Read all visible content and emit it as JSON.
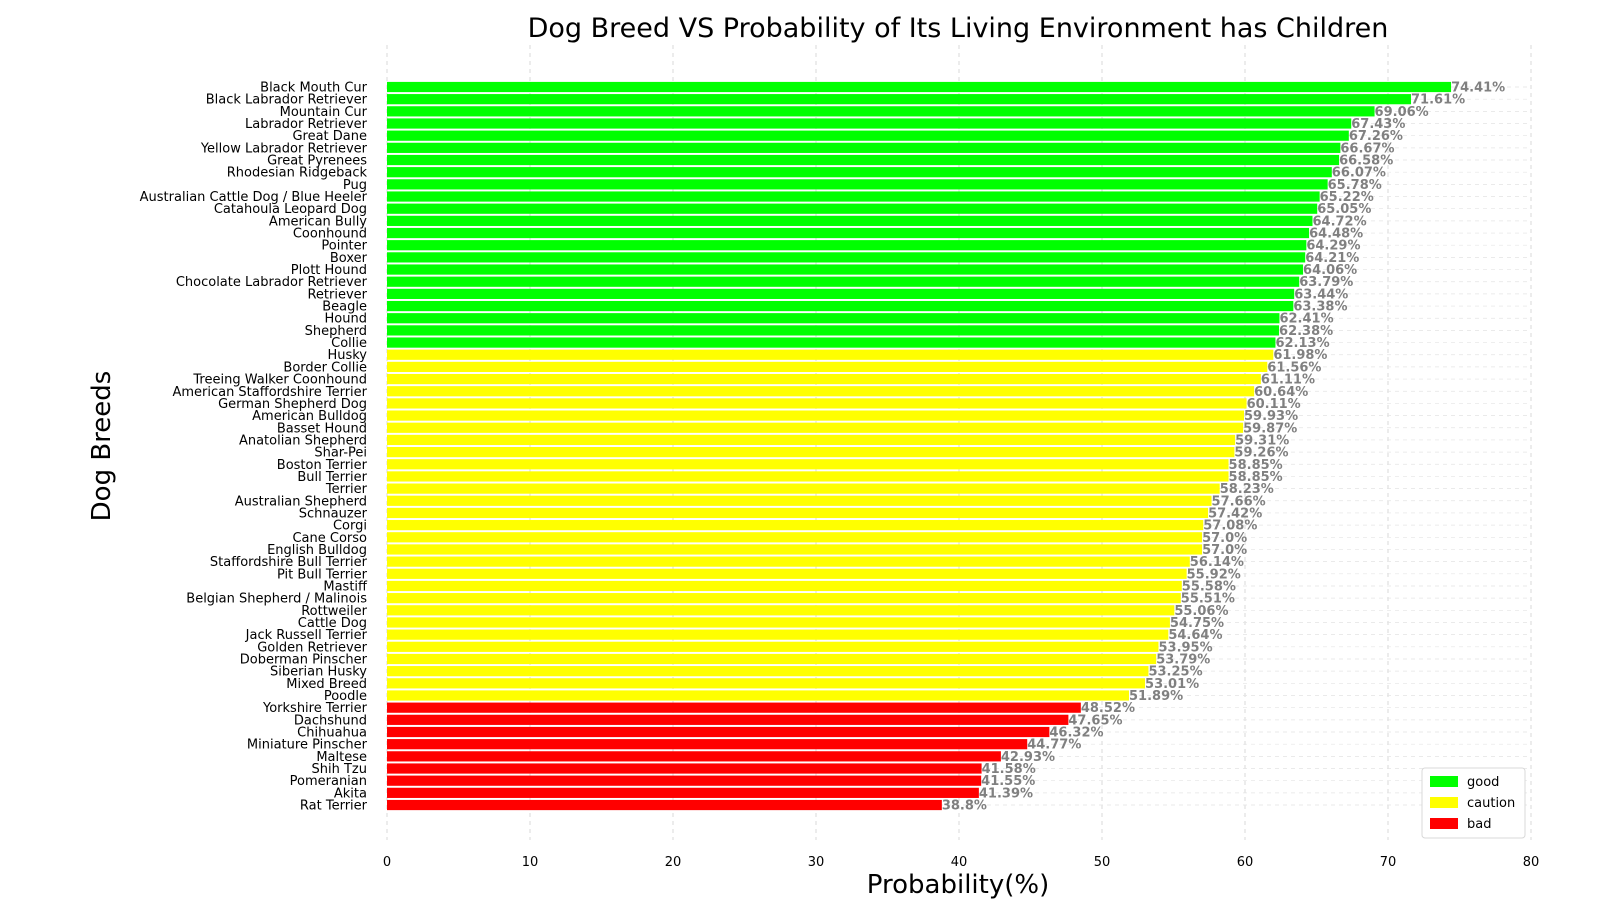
{
  "chart_data": {
    "type": "bar",
    "orientation": "horizontal",
    "title": "Dog Breed VS Probability of Its Living Environment has Children",
    "xlabel": "Probability(%)",
    "ylabel": "Dog Breeds",
    "xlim": [
      0,
      80
    ],
    "xticks": [
      "0",
      "10",
      "20",
      "30",
      "40",
      "50",
      "60",
      "70",
      "80"
    ],
    "grid": true,
    "legend_position": "bottom-right",
    "legend": [
      {
        "key": "good",
        "label": "good",
        "color": "#00ff00"
      },
      {
        "key": "caution",
        "label": "caution",
        "color": "#ffff00"
      },
      {
        "key": "bad",
        "label": "bad",
        "color": "#ff0000"
      }
    ],
    "categories": [
      "Black Mouth Cur",
      "Black Labrador Retriever",
      "Mountain Cur",
      "Labrador Retriever",
      "Great Dane",
      "Yellow Labrador Retriever",
      "Great Pyrenees",
      "Rhodesian Ridgeback",
      "Pug",
      "Australian Cattle Dog / Blue Heeler",
      "Catahoula Leopard Dog",
      "American Bully",
      "Coonhound",
      "Pointer",
      "Boxer",
      "Plott Hound",
      "Chocolate Labrador Retriever",
      "Retriever",
      "Beagle",
      "Hound",
      "Shepherd",
      "Collie",
      "Husky",
      "Border Collie",
      "Treeing Walker Coonhound",
      "American Staffordshire Terrier",
      "German Shepherd Dog",
      "American Bulldog",
      "Basset Hound",
      "Anatolian Shepherd",
      "Shar-Pei",
      "Boston Terrier",
      "Bull Terrier",
      "Terrier",
      "Australian Shepherd",
      "Schnauzer",
      "Corgi",
      "Cane Corso",
      "English Bulldog",
      "Staffordshire Bull Terrier",
      "Pit Bull Terrier",
      "Mastiff",
      "Belgian Shepherd / Malinois",
      "Rottweiler",
      "Cattle Dog",
      "Jack Russell Terrier",
      "Golden Retriever",
      "Doberman Pinscher",
      "Siberian Husky",
      "Mixed Breed",
      "Poodle",
      "Yorkshire Terrier",
      "Dachshund",
      "Chihuahua",
      "Miniature Pinscher",
      "Maltese",
      "Shih Tzu",
      "Pomeranian",
      "Akita",
      "Rat Terrier"
    ],
    "values": [
      74.41,
      71.61,
      69.06,
      67.43,
      67.26,
      66.67,
      66.58,
      66.07,
      65.78,
      65.22,
      65.05,
      64.72,
      64.48,
      64.29,
      64.21,
      64.06,
      63.79,
      63.44,
      63.38,
      62.41,
      62.38,
      62.13,
      61.98,
      61.56,
      61.11,
      60.64,
      60.11,
      59.93,
      59.87,
      59.31,
      59.26,
      58.85,
      58.85,
      58.23,
      57.66,
      57.42,
      57.08,
      57.0,
      57.0,
      56.14,
      55.92,
      55.58,
      55.51,
      55.06,
      54.75,
      54.64,
      53.95,
      53.79,
      53.25,
      53.01,
      51.89,
      48.52,
      47.65,
      46.32,
      44.77,
      42.93,
      41.58,
      41.55,
      41.39,
      38.8
    ],
    "value_labels": [
      "74.41%",
      "71.61%",
      "69.06%",
      "67.43%",
      "67.26%",
      "66.67%",
      "66.58%",
      "66.07%",
      "65.78%",
      "65.22%",
      "65.05%",
      "64.72%",
      "64.48%",
      "64.29%",
      "64.21%",
      "64.06%",
      "63.79%",
      "63.44%",
      "63.38%",
      "62.41%",
      "62.38%",
      "62.13%",
      "61.98%",
      "61.56%",
      "61.11%",
      "60.64%",
      "60.11%",
      "59.93%",
      "59.87%",
      "59.31%",
      "59.26%",
      "58.85%",
      "58.85%",
      "58.23%",
      "57.66%",
      "57.42%",
      "57.08%",
      "57.0%",
      "57.0%",
      "56.14%",
      "55.92%",
      "55.58%",
      "55.51%",
      "55.06%",
      "54.75%",
      "54.64%",
      "53.95%",
      "53.79%",
      "53.25%",
      "53.01%",
      "51.89%",
      "48.52%",
      "47.65%",
      "46.32%",
      "44.77%",
      "42.93%",
      "41.58%",
      "41.55%",
      "41.39%",
      "38.8%"
    ],
    "groups": [
      "good",
      "good",
      "good",
      "good",
      "good",
      "good",
      "good",
      "good",
      "good",
      "good",
      "good",
      "good",
      "good",
      "good",
      "good",
      "good",
      "good",
      "good",
      "good",
      "good",
      "good",
      "good",
      "caution",
      "caution",
      "caution",
      "caution",
      "caution",
      "caution",
      "caution",
      "caution",
      "caution",
      "caution",
      "caution",
      "caution",
      "caution",
      "caution",
      "caution",
      "caution",
      "caution",
      "caution",
      "caution",
      "caution",
      "caution",
      "caution",
      "caution",
      "caution",
      "caution",
      "caution",
      "caution",
      "caution",
      "caution",
      "bad",
      "bad",
      "bad",
      "bad",
      "bad",
      "bad",
      "bad",
      "bad",
      "bad"
    ]
  }
}
